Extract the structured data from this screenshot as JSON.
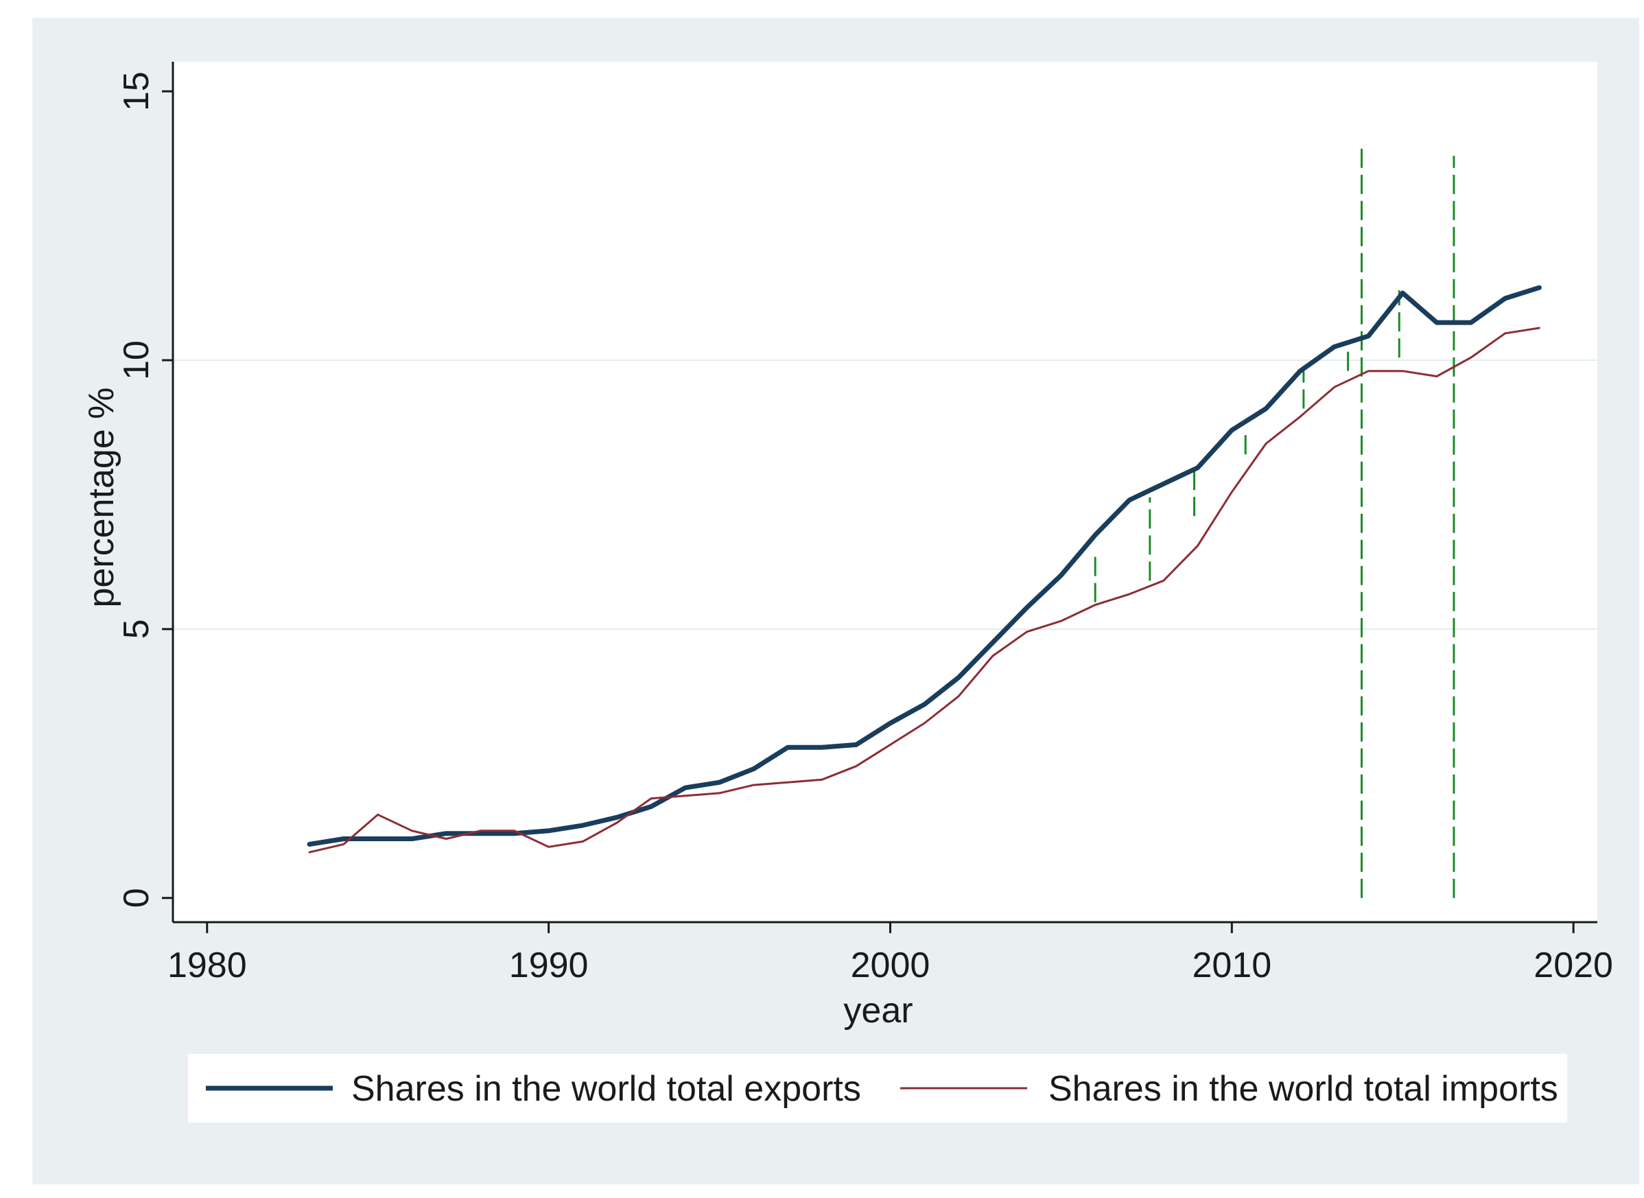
{
  "chart_data": {
    "type": "line",
    "title": "",
    "xlabel": "year",
    "ylabel": "percentage %",
    "xlim": [
      1979,
      2020.7
    ],
    "ylim": [
      -0.45,
      15.55
    ],
    "xticks": [
      1980,
      1990,
      2000,
      2010,
      2020
    ],
    "yticks": [
      0,
      5,
      10,
      15
    ],
    "grid": true,
    "legend_position": "bottom",
    "colors": {
      "outer_background": "#eaf0f2",
      "plot_background": "#ffffff",
      "gridline": "#e3ecef",
      "exports": "#1a3d5c",
      "imports": "#8c2d35",
      "markers": "#1e8a2a"
    },
    "series": [
      {
        "name": "Shares in the world total exports",
        "style": "thick",
        "x": [
          1983,
          1984,
          1985,
          1986,
          1987,
          1988,
          1989,
          1990,
          1991,
          1992,
          1993,
          1994,
          1995,
          1996,
          1997,
          1998,
          1999,
          2000,
          2001,
          2002,
          2003,
          2004,
          2005,
          2006,
          2007,
          2008,
          2009,
          2010,
          2011,
          2012,
          2013,
          2014,
          2015,
          2016,
          2017,
          2018,
          2019
        ],
        "values": [
          1.0,
          1.1,
          1.1,
          1.1,
          1.2,
          1.2,
          1.2,
          1.25,
          1.35,
          1.5,
          1.7,
          2.05,
          2.15,
          2.4,
          2.8,
          2.8,
          2.85,
          3.25,
          3.6,
          4.1,
          4.75,
          5.4,
          6.0,
          6.75,
          7.4,
          7.7,
          8.0,
          8.7,
          9.1,
          9.8,
          10.25,
          10.45,
          11.25,
          10.7,
          10.7,
          11.15,
          11.35
        ]
      },
      {
        "name": "Shares in the world total imports",
        "style": "thin",
        "x": [
          1983,
          1984,
          1985,
          1986,
          1987,
          1988,
          1989,
          1990,
          1991,
          1992,
          1993,
          1994,
          1995,
          1996,
          1997,
          1998,
          1999,
          2000,
          2001,
          2002,
          2003,
          2004,
          2005,
          2006,
          2007,
          2008,
          2009,
          2010,
          2011,
          2012,
          2013,
          2014,
          2015,
          2016,
          2017,
          2018,
          2019
        ],
        "values": [
          0.85,
          1.0,
          1.55,
          1.25,
          1.1,
          1.25,
          1.25,
          0.95,
          1.05,
          1.4,
          1.85,
          1.9,
          1.95,
          2.1,
          2.15,
          2.2,
          2.45,
          2.85,
          3.25,
          3.75,
          4.5,
          4.95,
          5.15,
          5.45,
          5.65,
          5.9,
          6.55,
          7.55,
          8.45,
          8.95,
          9.5,
          9.8,
          9.8,
          9.7,
          10.05,
          10.5,
          10.6
        ]
      }
    ],
    "vertical_markers": [
      {
        "x": 2006.0,
        "y_from": 5.5,
        "y_to": 6.45
      },
      {
        "x": 2007.6,
        "y_from": 5.9,
        "y_to": 7.45
      },
      {
        "x": 2008.9,
        "y_from": 7.1,
        "y_to": 8.0
      },
      {
        "x": 2010.4,
        "y_from": 8.25,
        "y_to": 8.7
      },
      {
        "x": 2012.1,
        "y_from": 9.1,
        "y_to": 9.8
      },
      {
        "x": 2013.4,
        "y_from": 9.8,
        "y_to": 10.3
      },
      {
        "x": 2013.8,
        "y_from": 0.0,
        "y_to": 14.0
      },
      {
        "x": 2014.9,
        "y_from": 10.05,
        "y_to": 11.3
      },
      {
        "x": 2016.5,
        "y_from": 0.0,
        "y_to": 13.8
      }
    ]
  }
}
